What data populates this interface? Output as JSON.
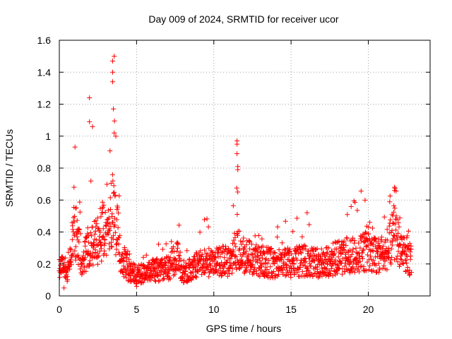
{
  "chart_data": {
    "type": "scatter",
    "title": "Day 009 of 2024, SRMTID for receiver ucor",
    "xlabel": "GPS time / hours",
    "ylabel": "SRMTID / TECUs",
    "xlim": [
      0,
      24
    ],
    "ylim": [
      0,
      1.6
    ],
    "xticks": [
      0,
      5,
      10,
      15,
      20
    ],
    "xtick_labels": [
      "0",
      "5",
      "10",
      "15",
      "20"
    ],
    "yticks": [
      0,
      0.2,
      0.4,
      0.6,
      0.8,
      1.0,
      1.2,
      1.4,
      1.6
    ],
    "ytick_labels": [
      "0",
      "0.2",
      "0.4",
      "0.6",
      "0.8",
      "1",
      "1.2",
      "1.4",
      "1.6"
    ],
    "grid": true,
    "marker": "plus",
    "color": "#ff0000",
    "x_range_data": [
      0,
      22.8
    ],
    "notable_points": [
      {
        "x": 1.95,
        "y": 1.24
      },
      {
        "x": 2.15,
        "y": 1.06
      },
      {
        "x": 1.95,
        "y": 1.09
      },
      {
        "x": 3.55,
        "y": 1.5
      },
      {
        "x": 3.45,
        "y": 1.47
      },
      {
        "x": 3.45,
        "y": 1.4
      },
      {
        "x": 3.45,
        "y": 1.34
      },
      {
        "x": 3.5,
        "y": 1.17
      },
      {
        "x": 3.55,
        "y": 1.02
      },
      {
        "x": 11.5,
        "y": 0.97
      },
      {
        "x": 11.5,
        "y": 0.95
      },
      {
        "x": 11.5,
        "y": 0.89
      },
      {
        "x": 11.55,
        "y": 0.81
      },
      {
        "x": 11.55,
        "y": 0.79
      },
      {
        "x": 11.55,
        "y": 0.65
      },
      {
        "x": 21.7,
        "y": 0.68
      },
      {
        "x": 21.7,
        "y": 0.66
      },
      {
        "x": 0.95,
        "y": 0.68
      },
      {
        "x": 0.3,
        "y": 0.05
      },
      {
        "x": 5.0,
        "y": 0.06
      }
    ],
    "baseline_profile": [
      {
        "x": 0.0,
        "y": 0.18
      },
      {
        "x": 0.5,
        "y": 0.16
      },
      {
        "x": 1.0,
        "y": 0.42
      },
      {
        "x": 1.5,
        "y": 0.22
      },
      {
        "x": 2.0,
        "y": 0.3
      },
      {
        "x": 2.5,
        "y": 0.35
      },
      {
        "x": 3.0,
        "y": 0.45
      },
      {
        "x": 3.5,
        "y": 0.55
      },
      {
        "x": 4.0,
        "y": 0.25
      },
      {
        "x": 4.5,
        "y": 0.16
      },
      {
        "x": 5.0,
        "y": 0.13
      },
      {
        "x": 6.0,
        "y": 0.16
      },
      {
        "x": 7.0,
        "y": 0.17
      },
      {
        "x": 7.7,
        "y": 0.26
      },
      {
        "x": 8.0,
        "y": 0.13
      },
      {
        "x": 9.0,
        "y": 0.2
      },
      {
        "x": 10.0,
        "y": 0.21
      },
      {
        "x": 11.0,
        "y": 0.22
      },
      {
        "x": 11.5,
        "y": 0.3
      },
      {
        "x": 12.0,
        "y": 0.25
      },
      {
        "x": 13.0,
        "y": 0.22
      },
      {
        "x": 14.0,
        "y": 0.2
      },
      {
        "x": 15.0,
        "y": 0.21
      },
      {
        "x": 16.0,
        "y": 0.22
      },
      {
        "x": 17.0,
        "y": 0.2
      },
      {
        "x": 18.0,
        "y": 0.24
      },
      {
        "x": 19.0,
        "y": 0.26
      },
      {
        "x": 20.0,
        "y": 0.28
      },
      {
        "x": 21.0,
        "y": 0.25
      },
      {
        "x": 21.7,
        "y": 0.4
      },
      {
        "x": 22.0,
        "y": 0.3
      },
      {
        "x": 22.8,
        "y": 0.22
      }
    ]
  }
}
